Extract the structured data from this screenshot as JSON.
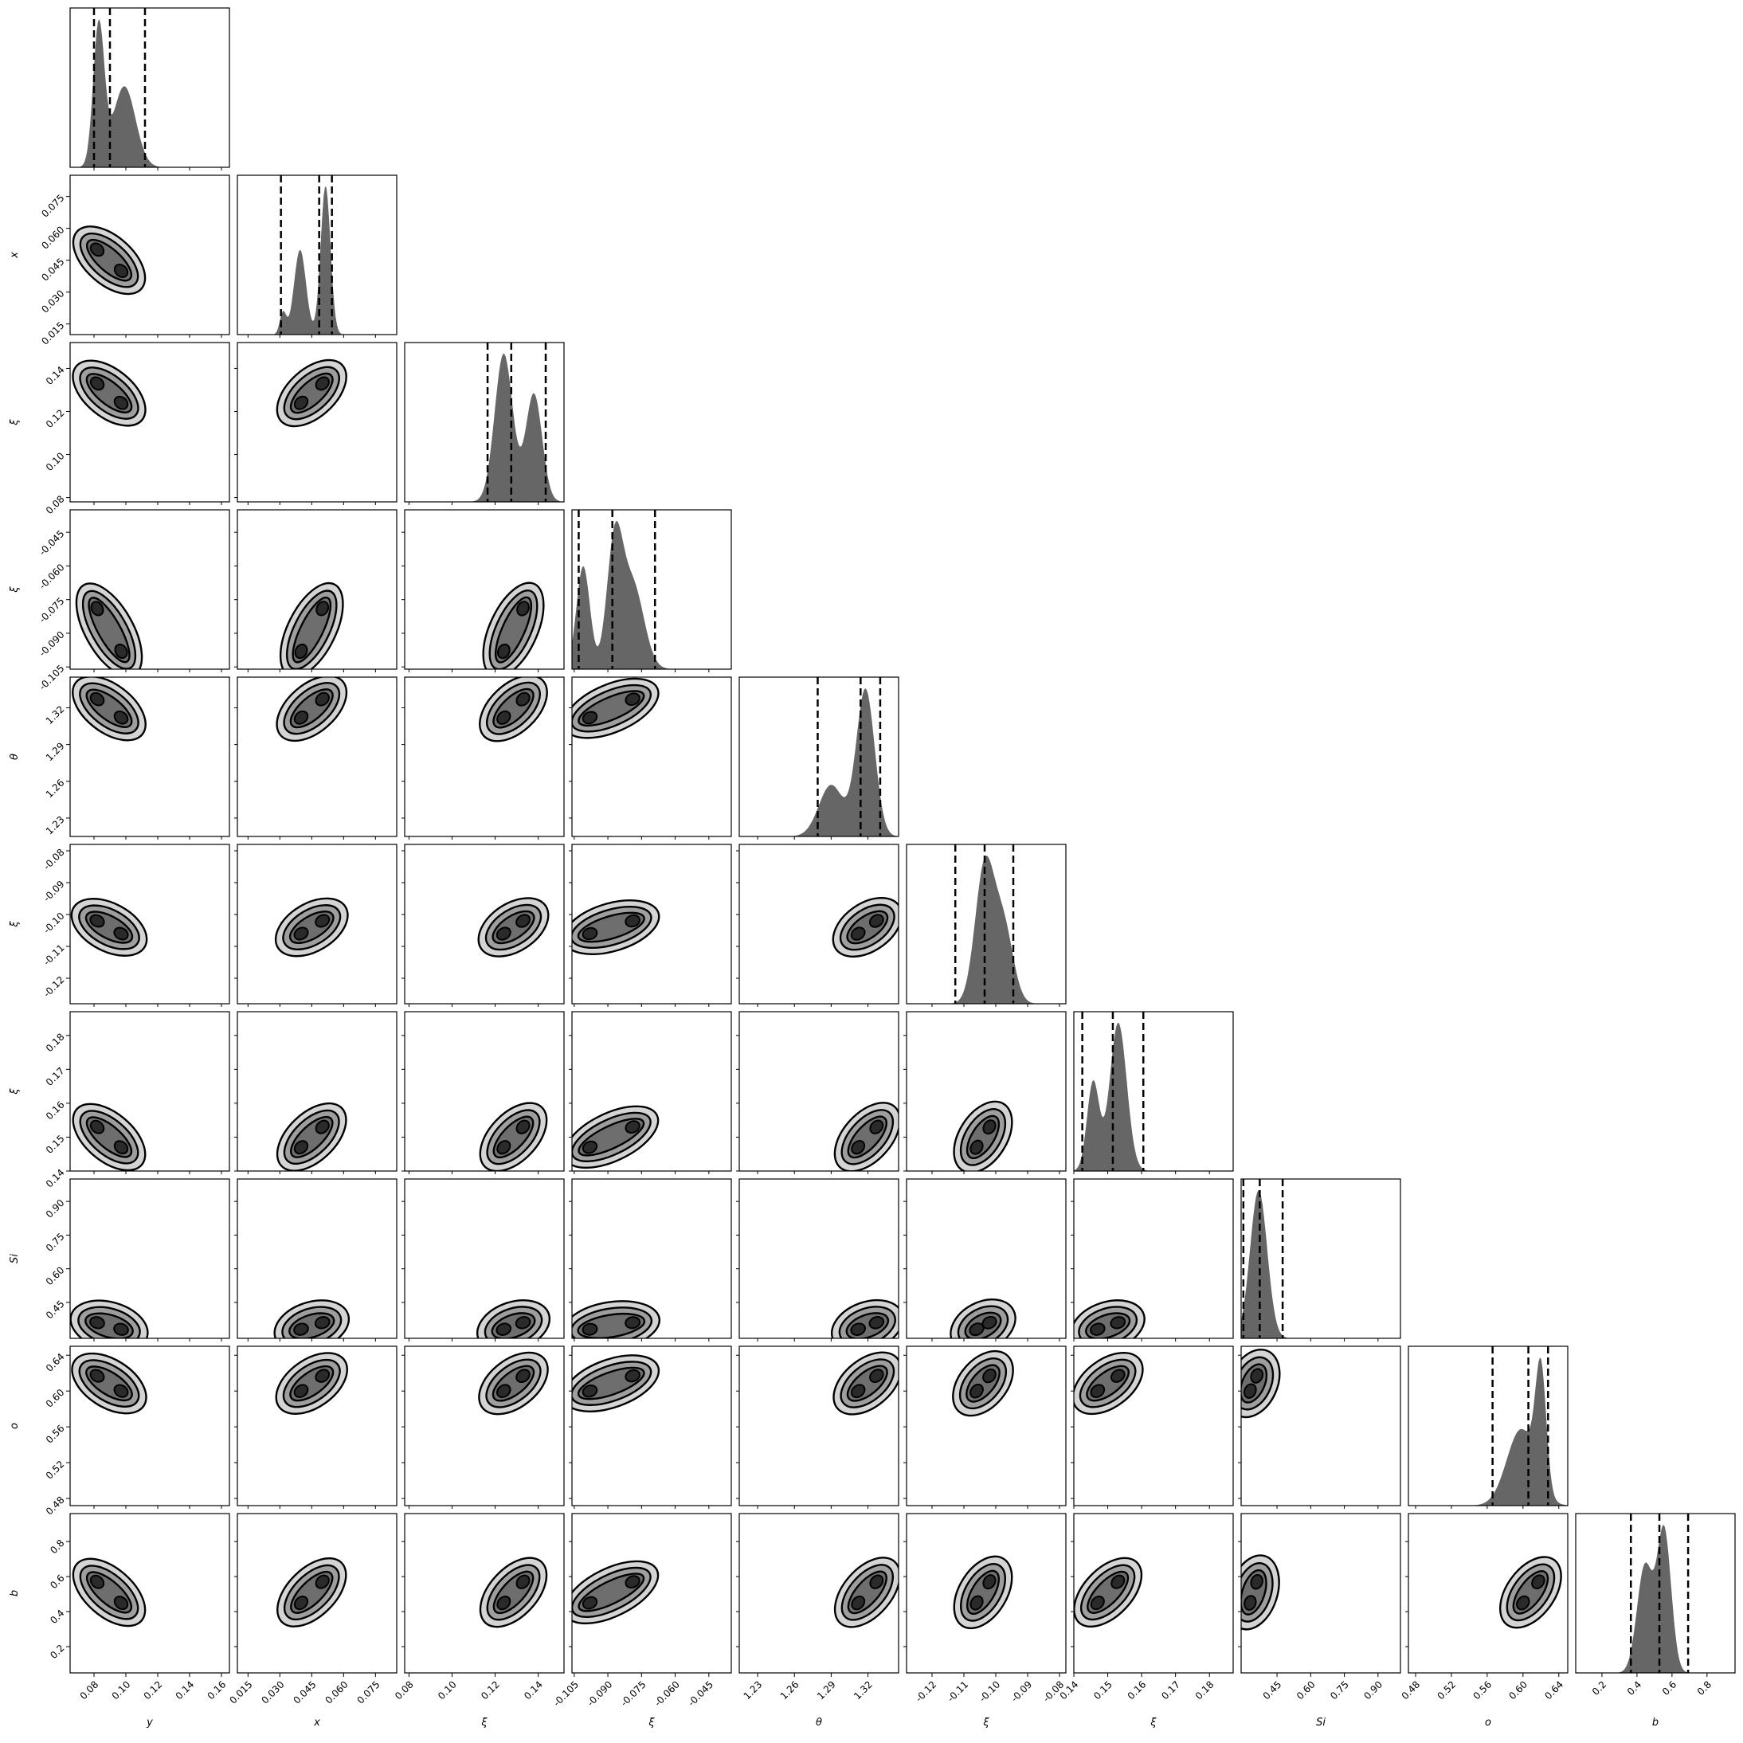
{
  "chart_data": {
    "type": "corner",
    "parameters": [
      {
        "label": "y",
        "range": [
          0.065,
          0.165
        ],
        "ticks": [
          "0.08",
          "0.10",
          "0.12",
          "0.14",
          "0.16"
        ],
        "tick_values": [
          0.08,
          0.1,
          0.12,
          0.14,
          0.16
        ],
        "quantiles": [
          0.08,
          0.09,
          0.112
        ],
        "hist_peaks": [
          {
            "mu": 0.083,
            "sd": 0.0035,
            "w": 1.0
          },
          {
            "mu": 0.099,
            "sd": 0.007,
            "w": 0.57
          }
        ],
        "modes": [
          [
            0.082,
            0.3
          ],
          [
            0.097,
            0.25
          ]
        ]
      },
      {
        "label": "x",
        "range": [
          0.01,
          0.085
        ],
        "ticks": [
          "0.015",
          "0.030",
          "0.045",
          "0.060",
          "0.075"
        ],
        "tick_values": [
          0.015,
          0.03,
          0.045,
          0.06,
          0.075
        ],
        "quantiles": [
          0.0305,
          0.0485,
          0.0545
        ],
        "hist_peaks": [
          {
            "mu": 0.0515,
            "sd": 0.0023,
            "w": 1.0
          },
          {
            "mu": 0.0395,
            "sd": 0.0028,
            "w": 0.57
          },
          {
            "mu": 0.0315,
            "sd": 0.0015,
            "w": 0.15
          }
        ],
        "modes": [
          [
            0.05,
            0.45
          ],
          [
            0.04,
            0.3
          ]
        ]
      },
      {
        "label": "ξ",
        "range": [
          0.078,
          0.152
        ],
        "ticks": [
          "0.08",
          "0.10",
          "0.12",
          "0.14"
        ],
        "tick_values": [
          0.08,
          0.1,
          0.12,
          0.14
        ],
        "quantiles": [
          0.1165,
          0.1275,
          0.1435
        ],
        "hist_peaks": [
          {
            "mu": 0.124,
            "sd": 0.0042,
            "w": 1.0
          },
          {
            "mu": 0.138,
            "sd": 0.0038,
            "w": 0.73
          }
        ],
        "modes": [
          [
            0.133,
            0.3
          ],
          [
            0.124,
            0.3
          ]
        ]
      },
      {
        "label": "ξ",
        "range": [
          -0.106,
          -0.035
        ],
        "ticks": [
          "-0.105",
          "-0.090",
          "-0.075",
          "-0.060",
          "-0.045"
        ],
        "tick_values": [
          -0.105,
          -0.09,
          -0.075,
          -0.06,
          -0.045
        ],
        "quantiles": [
          -0.103,
          -0.088,
          -0.069
        ],
        "hist_peaks": [
          {
            "mu": -0.101,
            "sd": 0.003,
            "w": 0.85
          },
          {
            "mu": -0.087,
            "sd": 0.0035,
            "w": 1.0
          },
          {
            "mu": -0.079,
            "sd": 0.005,
            "w": 0.7
          }
        ],
        "modes": [
          [
            -0.079,
            0.3
          ],
          [
            -0.098,
            0.3
          ]
        ]
      },
      {
        "label": "θ",
        "range": [
          1.215,
          1.345
        ],
        "ticks": [
          "1.23",
          "1.26",
          "1.29",
          "1.32"
        ],
        "tick_values": [
          1.23,
          1.26,
          1.29,
          1.32
        ],
        "quantiles": [
          1.279,
          1.314,
          1.33
        ],
        "hist_peaks": [
          {
            "mu": 1.318,
            "sd": 0.0075,
            "w": 1.0
          },
          {
            "mu": 1.29,
            "sd": 0.01,
            "w": 0.35
          }
        ],
        "modes": [
          [
            1.327,
            0.3
          ],
          [
            1.312,
            0.3
          ]
        ]
      },
      {
        "label": "ξ",
        "range": [
          -0.128,
          -0.078
        ],
        "ticks": [
          "-0.12",
          "-0.11",
          "-0.10",
          "-0.09",
          "-0.08"
        ],
        "tick_values": [
          -0.12,
          -0.11,
          -0.1,
          -0.09,
          -0.08
        ],
        "quantiles": [
          -0.1127,
          -0.1035,
          -0.0945
        ],
        "hist_peaks": [
          {
            "mu": -0.1035,
            "sd": 0.003,
            "w": 1.0
          },
          {
            "mu": -0.0975,
            "sd": 0.003,
            "w": 0.55
          }
        ],
        "modes": [
          [
            -0.102,
            0.3
          ],
          [
            -0.106,
            0.25
          ]
        ]
      },
      {
        "label": "ξ",
        "range": [
          0.14,
          0.187
        ],
        "ticks": [
          "0.14",
          "0.15",
          "0.16",
          "0.17",
          "0.18"
        ],
        "tick_values": [
          0.14,
          0.15,
          0.16,
          0.17,
          0.18
        ],
        "quantiles": [
          0.1425,
          0.1515,
          0.1605
        ],
        "hist_peaks": [
          {
            "mu": 0.1531,
            "sd": 0.0025,
            "w": 1.0
          },
          {
            "mu": 0.1457,
            "sd": 0.0018,
            "w": 0.6
          }
        ],
        "modes": [
          [
            0.153,
            0.3
          ],
          [
            0.147,
            0.3
          ]
        ]
      },
      {
        "label": "Si",
        "range": [
          0.29,
          1.0
        ],
        "ticks": [
          "0.45",
          "0.60",
          "0.75",
          "0.90"
        ],
        "tick_values": [
          0.45,
          0.6,
          0.75,
          0.9
        ],
        "quantiles": [
          0.3,
          0.373,
          0.475
        ],
        "hist_peaks": [
          {
            "mu": 0.368,
            "sd": 0.038,
            "w": 1.0
          }
        ],
        "modes": [
          [
            0.36,
            0.3
          ],
          [
            0.33,
            0.25
          ]
        ]
      },
      {
        "label": "o",
        "range": [
          0.472,
          0.65
        ],
        "ticks": [
          "0.48",
          "0.52",
          "0.56",
          "0.60",
          "0.64"
        ],
        "tick_values": [
          0.48,
          0.52,
          0.56,
          0.6,
          0.64
        ],
        "quantiles": [
          0.566,
          0.606,
          0.628
        ],
        "hist_peaks": [
          {
            "mu": 0.62,
            "sd": 0.006,
            "w": 1.0
          },
          {
            "mu": 0.598,
            "sd": 0.016,
            "w": 0.65
          }
        ],
        "modes": [
          [
            0.617,
            0.3
          ],
          [
            0.6,
            0.3
          ]
        ]
      },
      {
        "label": "b",
        "range": [
          0.05,
          0.96
        ],
        "ticks": [
          "0.2",
          "0.4",
          "0.6",
          "0.8"
        ],
        "tick_values": [
          0.2,
          0.4,
          0.6,
          0.8
        ],
        "quantiles": [
          0.365,
          0.528,
          0.692
        ],
        "hist_peaks": [
          {
            "mu": 0.555,
            "sd": 0.04,
            "w": 1.0
          },
          {
            "mu": 0.445,
            "sd": 0.045,
            "w": 0.75
          }
        ],
        "modes": [
          [
            0.57,
            0.3
          ],
          [
            0.45,
            0.3
          ]
        ]
      }
    ],
    "title": "",
    "grid": false,
    "contour_fill_colors": [
      "#d4d4d4",
      "#9e9e9e",
      "#6e6e6e",
      "#2a2a2a"
    ],
    "histogram_color": "#666666"
  }
}
